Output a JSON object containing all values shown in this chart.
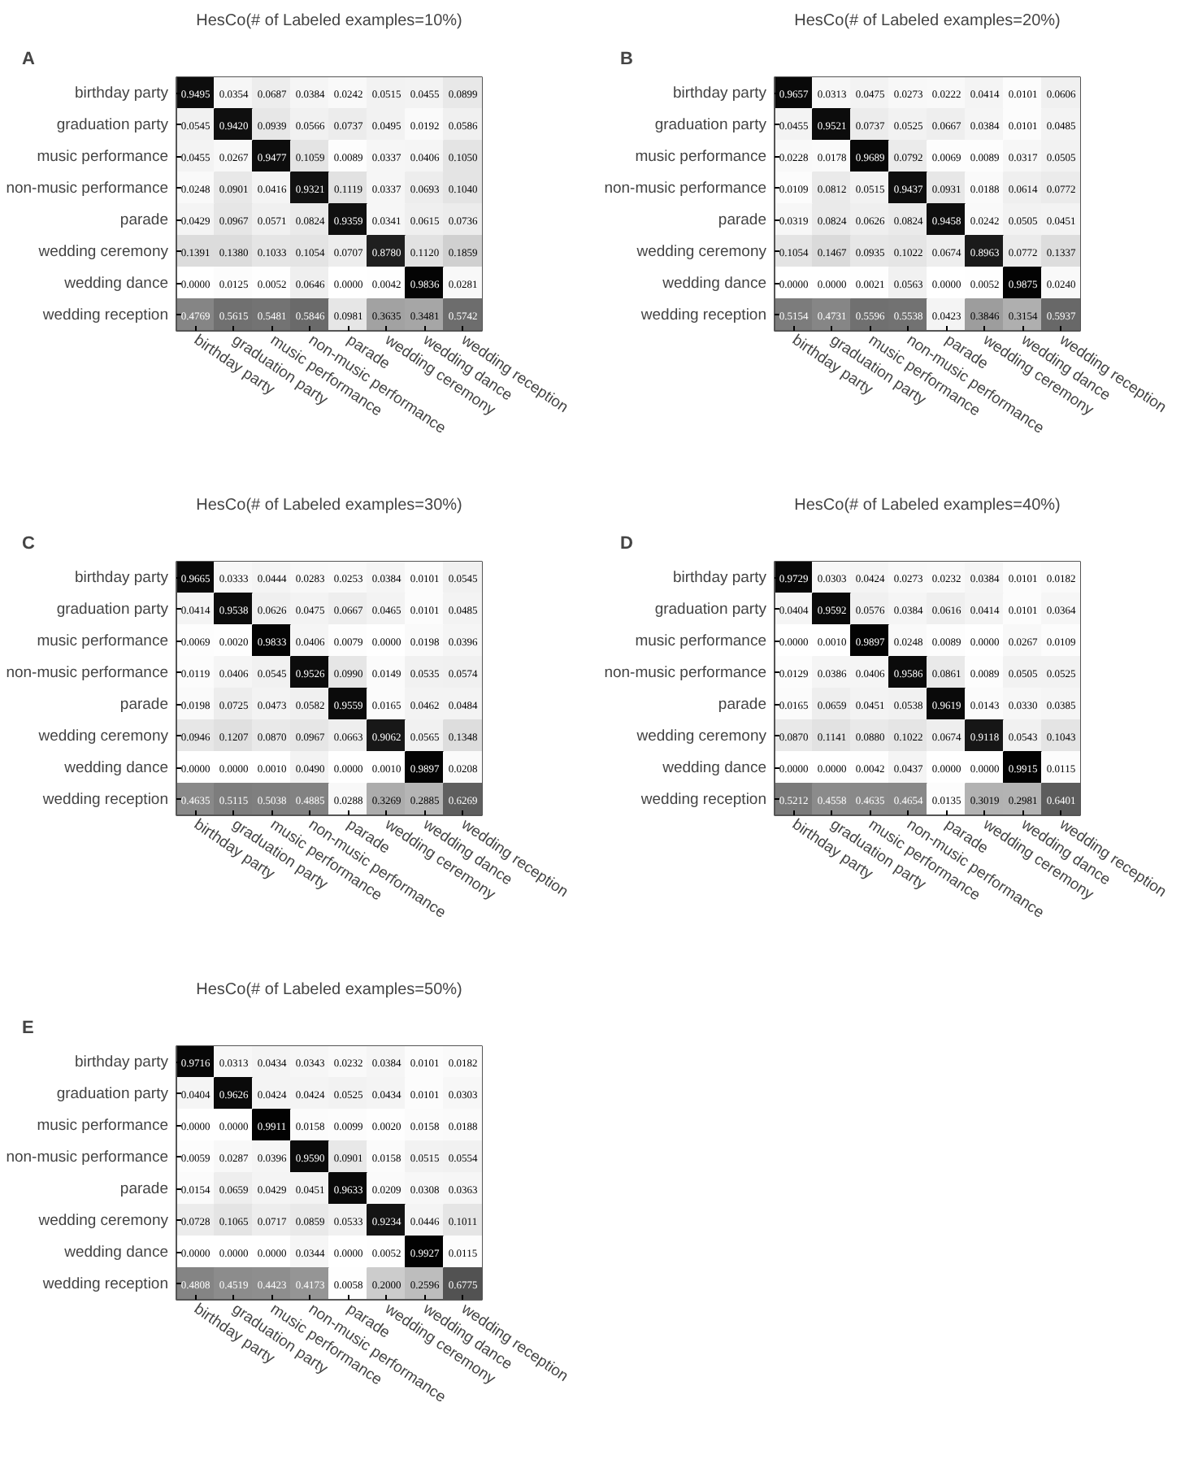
{
  "chart_data": [
    {
      "type": "heatmap",
      "title": "HesCo(# of Labeled examples=10%)",
      "annotations": [
        "A"
      ],
      "categories": [
        "birthday party",
        "graduation party",
        "music performance",
        "non-music performance",
        "parade",
        "wedding ceremony",
        "wedding dance",
        "wedding reception"
      ],
      "y_categories": [
        "birthday party",
        "graduation party",
        "music performance",
        "non-music performance",
        "parade",
        "wedding ceremony",
        "wedding dance",
        "wedding reception"
      ],
      "cells": [
        [
          0.9495,
          0.0354,
          0.0687,
          0.0384,
          0.0242,
          0.0515,
          0.0455,
          0.0899
        ],
        [
          0.0545,
          0.942,
          0.0939,
          0.0566,
          0.0737,
          0.0495,
          0.0192,
          0.0586
        ],
        [
          0.0455,
          0.0267,
          0.9477,
          0.1059,
          0.0089,
          0.0337,
          0.0406,
          0.105
        ],
        [
          0.0248,
          0.0901,
          0.0416,
          0.9321,
          0.1119,
          0.0337,
          0.0693,
          0.104
        ],
        [
          0.0429,
          0.0967,
          0.0571,
          0.0824,
          0.9359,
          0.0341,
          0.0615,
          0.0736
        ],
        [
          0.1391,
          0.138,
          0.1033,
          0.1054,
          0.0707,
          0.878,
          0.112,
          0.1859
        ],
        [
          0.0,
          0.0125,
          0.0052,
          0.0646,
          0.0,
          0.0042,
          0.9836,
          0.0281
        ],
        [
          0.4769,
          0.5615,
          0.5481,
          0.5846,
          0.0981,
          0.3635,
          0.3481,
          0.5742
        ]
      ],
      "cell_labels": [
        [
          "0.9495",
          "0.0354",
          "0.0687",
          "0.0384",
          "0.0242",
          "0.0515",
          "0.0455",
          "0.0899"
        ],
        [
          "0.0545",
          "0.9420",
          "0.0939",
          "0.0566",
          "0.0737",
          "0.0495",
          "0.0192",
          "0.0586"
        ],
        [
          "0.0455",
          "0.0267",
          "0.9477",
          "0.1059",
          "0.0089",
          "0.0337",
          "0.0406",
          "0.1050"
        ],
        [
          "0.0248",
          "0.0901",
          "0.0416",
          "0.9321",
          "0.1119",
          "0.0337",
          "0.0693",
          "0.1040"
        ],
        [
          "0.0429",
          "0.0967",
          "0.0571",
          "0.0824",
          "0.9359",
          "0.0341",
          "0.0615",
          "0.0736"
        ],
        [
          "0.1391",
          "0.1380",
          "0.1033",
          "0.1054",
          "0.0707",
          "0.8780",
          "0.1120",
          "0.1859"
        ],
        [
          "0.0000",
          "0.0125",
          "0.0052",
          "0.0646",
          "0.0000",
          "0.0042",
          "0.9836",
          "0.0281"
        ],
        [
          "0.4769",
          "0.5615",
          "0.5481",
          "0.5846",
          "0.0981",
          "0.3635",
          "0.3481",
          "0.5742"
        ]
      ]
    },
    {
      "type": "heatmap",
      "title": "HesCo(# of Labeled examples=20%)",
      "annotations": [
        "B"
      ],
      "categories": [
        "birthday party",
        "graduation party",
        "music performance",
        "non-music performance",
        "parade",
        "wedding ceremony",
        "wedding dance",
        "wedding reception"
      ],
      "y_categories": [
        "birthday party",
        "graduation party",
        "music performance",
        "non-music performance",
        "parade",
        "wedding ceremony",
        "wedding dance",
        "wedding reception"
      ],
      "cells": [
        [
          0.9657,
          0.0313,
          0.0475,
          0.0273,
          0.0222,
          0.0414,
          0.0101,
          0.0606
        ],
        [
          0.0455,
          0.9521,
          0.0737,
          0.0525,
          0.0667,
          0.0384,
          0.0101,
          0.0485
        ],
        [
          0.0228,
          0.0178,
          0.9689,
          0.0792,
          0.0069,
          0.0089,
          0.0317,
          0.0505
        ],
        [
          0.0109,
          0.0812,
          0.0515,
          0.9437,
          0.0931,
          0.0188,
          0.0614,
          0.0772
        ],
        [
          0.0319,
          0.0824,
          0.0626,
          0.0824,
          0.9458,
          0.0242,
          0.0505,
          0.0451
        ],
        [
          0.1054,
          0.1467,
          0.0935,
          0.1022,
          0.0674,
          0.8963,
          0.0772,
          0.1337
        ],
        [
          0.0,
          0.0,
          0.0021,
          0.0563,
          0.0,
          0.0052,
          0.9875,
          0.024
        ],
        [
          0.5154,
          0.4731,
          0.5596,
          0.5538,
          0.0423,
          0.3846,
          0.3154,
          0.5937
        ]
      ],
      "cell_labels": [
        [
          "0.9657",
          "0.0313",
          "0.0475",
          "0.0273",
          "0.0222",
          "0.0414",
          "0.0101",
          "0.0606"
        ],
        [
          "0.0455",
          "0.9521",
          "0.0737",
          "0.0525",
          "0.0667",
          "0.0384",
          "0.0101",
          "0.0485"
        ],
        [
          "0.0228",
          "0.0178",
          "0.9689",
          "0.0792",
          "0.0069",
          "0.0089",
          "0.0317",
          "0.0505"
        ],
        [
          "0.0109",
          "0.0812",
          "0.0515",
          "0.9437",
          "0.0931",
          "0.0188",
          "0.0614",
          "0.0772"
        ],
        [
          "0.0319",
          "0.0824",
          "0.0626",
          "0.0824",
          "0.9458",
          "0.0242",
          "0.0505",
          "0.0451"
        ],
        [
          "0.1054",
          "0.1467",
          "0.0935",
          "0.1022",
          "0.0674",
          "0.8963",
          "0.0772",
          "0.1337"
        ],
        [
          "0.0000",
          "0.0000",
          "0.0021",
          "0.0563",
          "0.0000",
          "0.0052",
          "0.9875",
          "0.0240"
        ],
        [
          "0.5154",
          "0.4731",
          "0.5596",
          "0.5538",
          "0.0423",
          "0.3846",
          "0.3154",
          "0.5937"
        ]
      ]
    },
    {
      "type": "heatmap",
      "title": "HesCo(# of Labeled examples=30%)",
      "annotations": [
        "C"
      ],
      "categories": [
        "birthday party",
        "graduation party",
        "music performance",
        "non-music performance",
        "parade",
        "wedding ceremony",
        "wedding dance",
        "wedding reception"
      ],
      "y_categories": [
        "birthday party",
        "graduation party",
        "music performance",
        "non-music performance",
        "parade",
        "wedding ceremony",
        "wedding dance",
        "wedding reception"
      ],
      "cells": [
        [
          0.9665,
          0.0333,
          0.0444,
          0.0283,
          0.0253,
          0.0384,
          0.0101,
          0.0545
        ],
        [
          0.0414,
          0.9538,
          0.0626,
          0.0475,
          0.0667,
          0.0465,
          0.0101,
          0.0485
        ],
        [
          0.0069,
          0.002,
          0.9833,
          0.0406,
          0.0079,
          0.0,
          0.0198,
          0.0396
        ],
        [
          0.0119,
          0.0406,
          0.0545,
          0.9526,
          0.099,
          0.0149,
          0.0535,
          0.0574
        ],
        [
          0.0198,
          0.0725,
          0.0473,
          0.0582,
          0.9559,
          0.0165,
          0.0462,
          0.0484
        ],
        [
          0.0946,
          0.1207,
          0.087,
          0.0967,
          0.0663,
          0.9062,
          0.0565,
          0.1348
        ],
        [
          0.0,
          0.0,
          0.001,
          0.049,
          0.0,
          0.001,
          0.9897,
          0.0208
        ],
        [
          0.4635,
          0.5115,
          0.5038,
          0.4885,
          0.0288,
          0.3269,
          0.2885,
          0.6269
        ]
      ],
      "cell_labels": [
        [
          "0.9665",
          "0.0333",
          "0.0444",
          "0.0283",
          "0.0253",
          "0.0384",
          "0.0101",
          "0.0545"
        ],
        [
          "0.0414",
          "0.9538",
          "0.0626",
          "0.0475",
          "0.0667",
          "0.0465",
          "0.0101",
          "0.0485"
        ],
        [
          "0.0069",
          "0.0020",
          "0.9833",
          "0.0406",
          "0.0079",
          "0.0000",
          "0.0198",
          "0.0396"
        ],
        [
          "0.0119",
          "0.0406",
          "0.0545",
          "0.9526",
          "0.0990",
          "0.0149",
          "0.0535",
          "0.0574"
        ],
        [
          "0.0198",
          "0.0725",
          "0.0473",
          "0.0582",
          "0.9559",
          "0.0165",
          "0.0462",
          "0.0484"
        ],
        [
          "0.0946",
          "0.1207",
          "0.0870",
          "0.0967",
          "0.0663",
          "0.9062",
          "0.0565",
          "0.1348"
        ],
        [
          "0.0000",
          "0.0000",
          "0.0010",
          "0.0490",
          "0.0000",
          "0.0010",
          "0.9897",
          "0.0208"
        ],
        [
          "0.4635",
          "0.5115",
          "0.5038",
          "0.4885",
          "0.0288",
          "0.3269",
          "0.2885",
          "0.6269"
        ]
      ]
    },
    {
      "type": "heatmap",
      "title": "HesCo(# of Labeled examples=40%)",
      "annotations": [
        "D"
      ],
      "categories": [
        "birthday party",
        "graduation party",
        "music performance",
        "non-music performance",
        "parade",
        "wedding ceremony",
        "wedding dance",
        "wedding reception"
      ],
      "y_categories": [
        "birthday party",
        "graduation party",
        "music performance",
        "non-music performance",
        "parade",
        "wedding ceremony",
        "wedding dance",
        "wedding reception"
      ],
      "cells": [
        [
          0.9729,
          0.0303,
          0.0424,
          0.0273,
          0.0232,
          0.0384,
          0.0101,
          0.0182
        ],
        [
          0.0404,
          0.9592,
          0.0576,
          0.0384,
          0.0616,
          0.0414,
          0.0101,
          0.0364
        ],
        [
          0.0,
          0.001,
          0.9897,
          0.0248,
          0.0089,
          0.0,
          0.0267,
          0.0109
        ],
        [
          0.0129,
          0.0386,
          0.0406,
          0.9586,
          0.0861,
          0.0089,
          0.0505,
          0.0525
        ],
        [
          0.0165,
          0.0659,
          0.0451,
          0.0538,
          0.9619,
          0.0143,
          0.033,
          0.0385
        ],
        [
          0.087,
          0.1141,
          0.088,
          0.1022,
          0.0674,
          0.9118,
          0.0543,
          0.1043
        ],
        [
          0.0,
          0.0,
          0.0042,
          0.0437,
          0.0,
          0.0,
          0.9915,
          0.0115
        ],
        [
          0.5212,
          0.4558,
          0.4635,
          0.4654,
          0.0135,
          0.3019,
          0.2981,
          0.6401
        ]
      ],
      "cell_labels": [
        [
          "0.9729",
          "0.0303",
          "0.0424",
          "0.0273",
          "0.0232",
          "0.0384",
          "0.0101",
          "0.0182"
        ],
        [
          "0.0404",
          "0.9592",
          "0.0576",
          "0.0384",
          "0.0616",
          "0.0414",
          "0.0101",
          "0.0364"
        ],
        [
          "0.0000",
          "0.0010",
          "0.9897",
          "0.0248",
          "0.0089",
          "0.0000",
          "0.0267",
          "0.0109"
        ],
        [
          "0.0129",
          "0.0386",
          "0.0406",
          "0.9586",
          "0.0861",
          "0.0089",
          "0.0505",
          "0.0525"
        ],
        [
          "0.0165",
          "0.0659",
          "0.0451",
          "0.0538",
          "0.9619",
          "0.0143",
          "0.0330",
          "0.0385"
        ],
        [
          "0.0870",
          "0.1141",
          "0.0880",
          "0.1022",
          "0.0674",
          "0.9118",
          "0.0543",
          "0.1043"
        ],
        [
          "0.0000",
          "0.0000",
          "0.0042",
          "0.0437",
          "0.0000",
          "0.0000",
          "0.9915",
          "0.0115"
        ],
        [
          "0.5212",
          "0.4558",
          "0.4635",
          "0.4654",
          "0.0135",
          "0.3019",
          "0.2981",
          "0.6401"
        ]
      ]
    },
    {
      "type": "heatmap",
      "title": "HesCo(# of Labeled examples=50%)",
      "annotations": [
        "E"
      ],
      "categories": [
        "birthday party",
        "graduation party",
        "music performance",
        "non-music performance",
        "parade",
        "wedding ceremony",
        "wedding dance",
        "wedding reception"
      ],
      "y_categories": [
        "birthday party",
        "graduation party",
        "music performance",
        "non-music performance",
        "parade",
        "wedding ceremony",
        "wedding dance",
        "wedding reception"
      ],
      "cells": [
        [
          0.9716,
          0.0313,
          0.0434,
          0.0343,
          0.0232,
          0.0384,
          0.0101,
          0.0182
        ],
        [
          0.0404,
          0.9626,
          0.0424,
          0.0424,
          0.0525,
          0.0434,
          0.0101,
          0.0303
        ],
        [
          0.0,
          0.0,
          0.9911,
          0.0158,
          0.0099,
          0.002,
          0.0158,
          0.0188
        ],
        [
          0.0059,
          0.0287,
          0.0396,
          0.959,
          0.0901,
          0.0158,
          0.0515,
          0.0554
        ],
        [
          0.0154,
          0.0659,
          0.0429,
          0.0451,
          0.9633,
          0.0209,
          0.0308,
          0.0363
        ],
        [
          0.0728,
          0.1065,
          0.0717,
          0.0859,
          0.0533,
          0.9234,
          0.0446,
          0.1011
        ],
        [
          0.0,
          0.0,
          0.0,
          0.0344,
          0.0,
          0.0052,
          0.9927,
          0.0115
        ],
        [
          0.4808,
          0.4519,
          0.4423,
          0.4173,
          0.0058,
          0.2,
          0.2596,
          0.6775
        ]
      ],
      "cell_labels": [
        [
          "0.9716",
          "0.0313",
          "0.0434",
          "0.0343",
          "0.0232",
          "0.0384",
          "0.0101",
          "0.0182"
        ],
        [
          "0.0404",
          "0.9626",
          "0.0424",
          "0.0424",
          "0.0525",
          "0.0434",
          "0.0101",
          "0.0303"
        ],
        [
          "0.0000",
          "0.0000",
          "0.9911",
          "0.0158",
          "0.0099",
          "0.0020",
          "0.0158",
          "0.0188"
        ],
        [
          "0.0059",
          "0.0287",
          "0.0396",
          "0.9590",
          "0.0901",
          "0.0158",
          "0.0515",
          "0.0554"
        ],
        [
          "0.0154",
          "0.0659",
          "0.0429",
          "0.0451",
          "0.9633",
          "0.0209",
          "0.0308",
          "0.0363"
        ],
        [
          "0.0728",
          "0.1065",
          "0.0717",
          "0.0859",
          "0.0533",
          "0.9234",
          "0.0446",
          "0.1011"
        ],
        [
          "0.0000",
          "0.0000",
          "0.0000",
          "0.0344",
          "0.0000",
          "0.0052",
          "0.9927",
          "0.0115"
        ],
        [
          "0.4808",
          "0.4519",
          "0.4423",
          "0.4173",
          "0.0058",
          "0.2000",
          "0.2596",
          "0.6775"
        ]
      ]
    }
  ]
}
